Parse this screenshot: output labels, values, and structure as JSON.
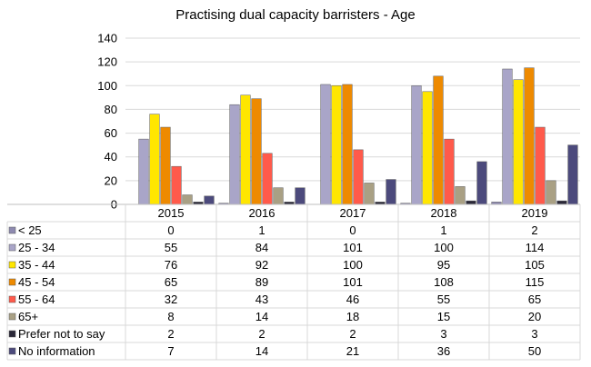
{
  "chart_data": {
    "type": "bar",
    "title": "Practising dual capacity barristers - Age",
    "categories": [
      "2015",
      "2016",
      "2017",
      "2018",
      "2019"
    ],
    "yticks": [
      "0",
      "20",
      "40",
      "60",
      "80",
      "100",
      "120",
      "140"
    ],
    "ylim": [
      0,
      140
    ],
    "grid": true,
    "legend": "table-below",
    "series": [
      {
        "name": "< 25",
        "color": "#8e8ab0",
        "values": [
          0,
          1,
          0,
          1,
          2
        ]
      },
      {
        "name": "25 - 34",
        "color": "#a9a5c8",
        "values": [
          55,
          84,
          101,
          100,
          114
        ]
      },
      {
        "name": "35 - 44",
        "color": "#ffe600",
        "values": [
          76,
          92,
          100,
          95,
          105
        ]
      },
      {
        "name": "45 - 54",
        "color": "#ee8a00",
        "values": [
          65,
          89,
          101,
          108,
          115
        ]
      },
      {
        "name": "55 - 64",
        "color": "#ff5a4b",
        "values": [
          32,
          43,
          46,
          55,
          65
        ]
      },
      {
        "name": "65+",
        "color": "#a9a084",
        "values": [
          8,
          14,
          18,
          15,
          20
        ]
      },
      {
        "name": "Prefer not to say",
        "color": "#2a2838",
        "values": [
          2,
          2,
          2,
          3,
          3
        ]
      },
      {
        "name": "No information",
        "color": "#4c4a7c",
        "values": [
          7,
          14,
          21,
          36,
          50
        ]
      }
    ]
  }
}
